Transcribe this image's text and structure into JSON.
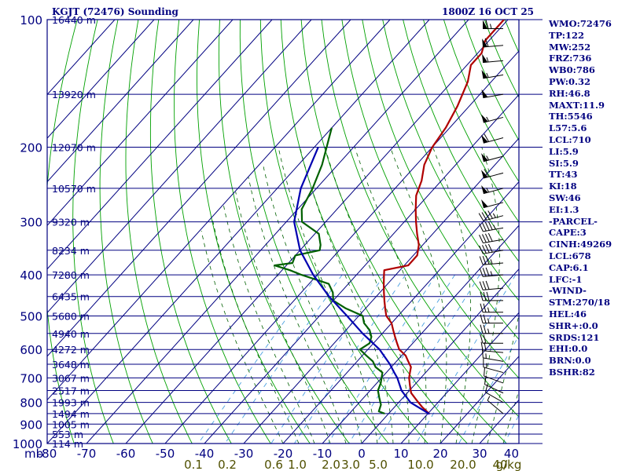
{
  "header": {
    "station": "KGJT (72476) Sounding",
    "time": "1800Z 16 OCT 25"
  },
  "indices": [
    "WMO:72476",
    "TP:122",
    "MW:252",
    "FRZ:736",
    "WB0:786",
    "PW:0.32",
    "RH:46.8",
    "MAXT:11.9",
    "TH:5546",
    "L57:5.6",
    "LCL:710",
    "LI:5.9",
    "SI:5.9",
    "TT:43",
    "KI:18",
    "SW:46",
    "EI:1.3",
    "-PARCEL-",
    "CAPE:3",
    "CINH:49269",
    "LCL:678",
    "CAP:6.1",
    "LFC:-1",
    "-WIND-",
    "STM:270/18",
    "HEL:46",
    "SHR+:0.0",
    "SRDS:121",
    "EHI:0.0",
    "BRN:0.0",
    "BSHR:82"
  ],
  "colors": {
    "frame": "#000080",
    "isotherm": "#000080",
    "dry_adiabat": "#00a000",
    "moist_adiabat": "#006000",
    "mixing_ratio": "#4aa0e0",
    "temperature": "#b00000",
    "dewpoint": "#006000",
    "parcel": "#0000b0",
    "axis_text": "#000080",
    "mixing_text": "#505000",
    "wind": "#000000"
  },
  "chart_data": {
    "type": "line",
    "title": "KGJT (72476) Sounding",
    "subtitle": "1800Z 16 OCT 25",
    "pressure_ticks": [
      100,
      200,
      300,
      400,
      500,
      600,
      700,
      800,
      900,
      1000
    ],
    "pressure_corner_label": "mb",
    "temperature_ticks": [
      -80,
      -70,
      -60,
      -50,
      -40,
      -30,
      -20,
      -10,
      0,
      10,
      20,
      30,
      40
    ],
    "temperature_labels": [
      "-80",
      "-70",
      "-60",
      "-50",
      "-40",
      "-30",
      "-20",
      "-10",
      "0",
      "10",
      "20",
      "30",
      "40"
    ],
    "ylim": [
      1000,
      100
    ],
    "heights": [
      {
        "p": 100,
        "label": "16440 m"
      },
      {
        "p": 150,
        "label": "13920 m"
      },
      {
        "p": 200,
        "label": "12070 m"
      },
      {
        "p": 250,
        "label": "10570 m"
      },
      {
        "p": 300,
        "label": "9320 m"
      },
      {
        "p": 350,
        "label": "8234 m"
      },
      {
        "p": 400,
        "label": "7280 m"
      },
      {
        "p": 450,
        "label": "6435 m"
      },
      {
        "p": 500,
        "label": "5680 m"
      },
      {
        "p": 550,
        "label": "4940 m"
      },
      {
        "p": 600,
        "label": "4272 m"
      },
      {
        "p": 650,
        "label": "3648 m"
      },
      {
        "p": 700,
        "label": "3067 m"
      },
      {
        "p": 750,
        "label": "2517 m"
      },
      {
        "p": 800,
        "label": "1993 m"
      },
      {
        "p": 850,
        "label": "1494 m"
      },
      {
        "p": 900,
        "label": "1005 m"
      },
      {
        "p": 950,
        "label": "553 m"
      },
      {
        "p": 1000,
        "label": "114 m"
      }
    ],
    "mixing_ratio_labels": [
      "0.1",
      "0.2",
      "0.6",
      "1.0",
      "2.0",
      "3.0",
      "5.0",
      "10.0",
      "20.0",
      "40",
      "g/kg"
    ],
    "grid": true,
    "series": [
      {
        "role": "temperature",
        "points": [
          [
            100,
            -61
          ],
          [
            112,
            -61
          ],
          [
            120,
            -59
          ],
          [
            128,
            -59
          ],
          [
            140,
            -56
          ],
          [
            160,
            -53
          ],
          [
            180,
            -51
          ],
          [
            200,
            -50
          ],
          [
            220,
            -48
          ],
          [
            240,
            -45
          ],
          [
            260,
            -43
          ],
          [
            280,
            -40
          ],
          [
            300,
            -37
          ],
          [
            320,
            -34
          ],
          [
            340,
            -31
          ],
          [
            360,
            -29
          ],
          [
            380,
            -29
          ],
          [
            390,
            -34
          ],
          [
            400,
            -33
          ],
          [
            420,
            -31
          ],
          [
            440,
            -29
          ],
          [
            460,
            -27
          ],
          [
            480,
            -25
          ],
          [
            500,
            -23
          ],
          [
            520,
            -20
          ],
          [
            540,
            -18
          ],
          [
            560,
            -16
          ],
          [
            580,
            -14
          ],
          [
            600,
            -12
          ],
          [
            620,
            -9
          ],
          [
            640,
            -7
          ],
          [
            660,
            -5
          ],
          [
            680,
            -4
          ],
          [
            700,
            -3
          ],
          [
            730,
            -1
          ],
          [
            760,
            1
          ],
          [
            790,
            4
          ],
          [
            820,
            7
          ],
          [
            852,
            10.5
          ]
        ]
      },
      {
        "role": "dewpoint",
        "points": [
          [
            180,
            -80
          ],
          [
            220,
            -74
          ],
          [
            250,
            -71
          ],
          [
            280,
            -69
          ],
          [
            300,
            -66
          ],
          [
            320,
            -59
          ],
          [
            340,
            -56
          ],
          [
            350,
            -55
          ],
          [
            360,
            -60
          ],
          [
            375,
            -59
          ],
          [
            380,
            -63
          ],
          [
            390,
            -58
          ],
          [
            400,
            -54
          ],
          [
            420,
            -45
          ],
          [
            440,
            -42
          ],
          [
            460,
            -40
          ],
          [
            480,
            -35
          ],
          [
            500,
            -29
          ],
          [
            520,
            -27
          ],
          [
            540,
            -24
          ],
          [
            560,
            -22
          ],
          [
            580,
            -21
          ],
          [
            600,
            -22
          ],
          [
            620,
            -19
          ],
          [
            640,
            -16
          ],
          [
            660,
            -14
          ],
          [
            680,
            -11
          ],
          [
            700,
            -10
          ],
          [
            720,
            -9
          ],
          [
            750,
            -8
          ],
          [
            780,
            -6
          ],
          [
            810,
            -4
          ],
          [
            840,
            -3
          ],
          [
            850,
            -1
          ]
        ]
      },
      {
        "role": "parcel",
        "points": [
          [
            200,
            -79
          ],
          [
            250,
            -74
          ],
          [
            300,
            -68
          ],
          [
            350,
            -60
          ],
          [
            400,
            -51
          ],
          [
            450,
            -42
          ],
          [
            500,
            -33
          ],
          [
            550,
            -25
          ],
          [
            600,
            -17
          ],
          [
            650,
            -11
          ],
          [
            680,
            -8
          ],
          [
            700,
            -6
          ],
          [
            750,
            -2
          ],
          [
            800,
            3
          ],
          [
            852,
            10.5
          ]
        ]
      }
    ],
    "wind_barbs": [
      {
        "p": 105,
        "dir": 270,
        "spd": 65
      },
      {
        "p": 115,
        "dir": 265,
        "spd": 60
      },
      {
        "p": 125,
        "dir": 265,
        "spd": 55
      },
      {
        "p": 135,
        "dir": 260,
        "spd": 55
      },
      {
        "p": 150,
        "dir": 260,
        "spd": 50
      },
      {
        "p": 170,
        "dir": 255,
        "spd": 55
      },
      {
        "p": 190,
        "dir": 255,
        "spd": 60
      },
      {
        "p": 210,
        "dir": 255,
        "spd": 55
      },
      {
        "p": 230,
        "dir": 255,
        "spd": 60
      },
      {
        "p": 250,
        "dir": 255,
        "spd": 55
      },
      {
        "p": 270,
        "dir": 255,
        "spd": 50
      },
      {
        "p": 290,
        "dir": 255,
        "spd": 45
      },
      {
        "p": 310,
        "dir": 260,
        "spd": 45
      },
      {
        "p": 330,
        "dir": 260,
        "spd": 40
      },
      {
        "p": 350,
        "dir": 260,
        "spd": 40
      },
      {
        "p": 375,
        "dir": 265,
        "spd": 35
      },
      {
        "p": 400,
        "dir": 265,
        "spd": 35
      },
      {
        "p": 430,
        "dir": 265,
        "spd": 30
      },
      {
        "p": 460,
        "dir": 270,
        "spd": 30
      },
      {
        "p": 490,
        "dir": 270,
        "spd": 25
      },
      {
        "p": 520,
        "dir": 270,
        "spd": 25
      },
      {
        "p": 550,
        "dir": 270,
        "spd": 25
      },
      {
        "p": 580,
        "dir": 270,
        "spd": 20
      },
      {
        "p": 610,
        "dir": 275,
        "spd": 20
      },
      {
        "p": 640,
        "dir": 280,
        "spd": 15
      },
      {
        "p": 680,
        "dir": 285,
        "spd": 15
      },
      {
        "p": 720,
        "dir": 290,
        "spd": 10
      },
      {
        "p": 760,
        "dir": 295,
        "spd": 10
      },
      {
        "p": 800,
        "dir": 300,
        "spd": 10
      },
      {
        "p": 850,
        "dir": 310,
        "spd": 5
      }
    ]
  }
}
